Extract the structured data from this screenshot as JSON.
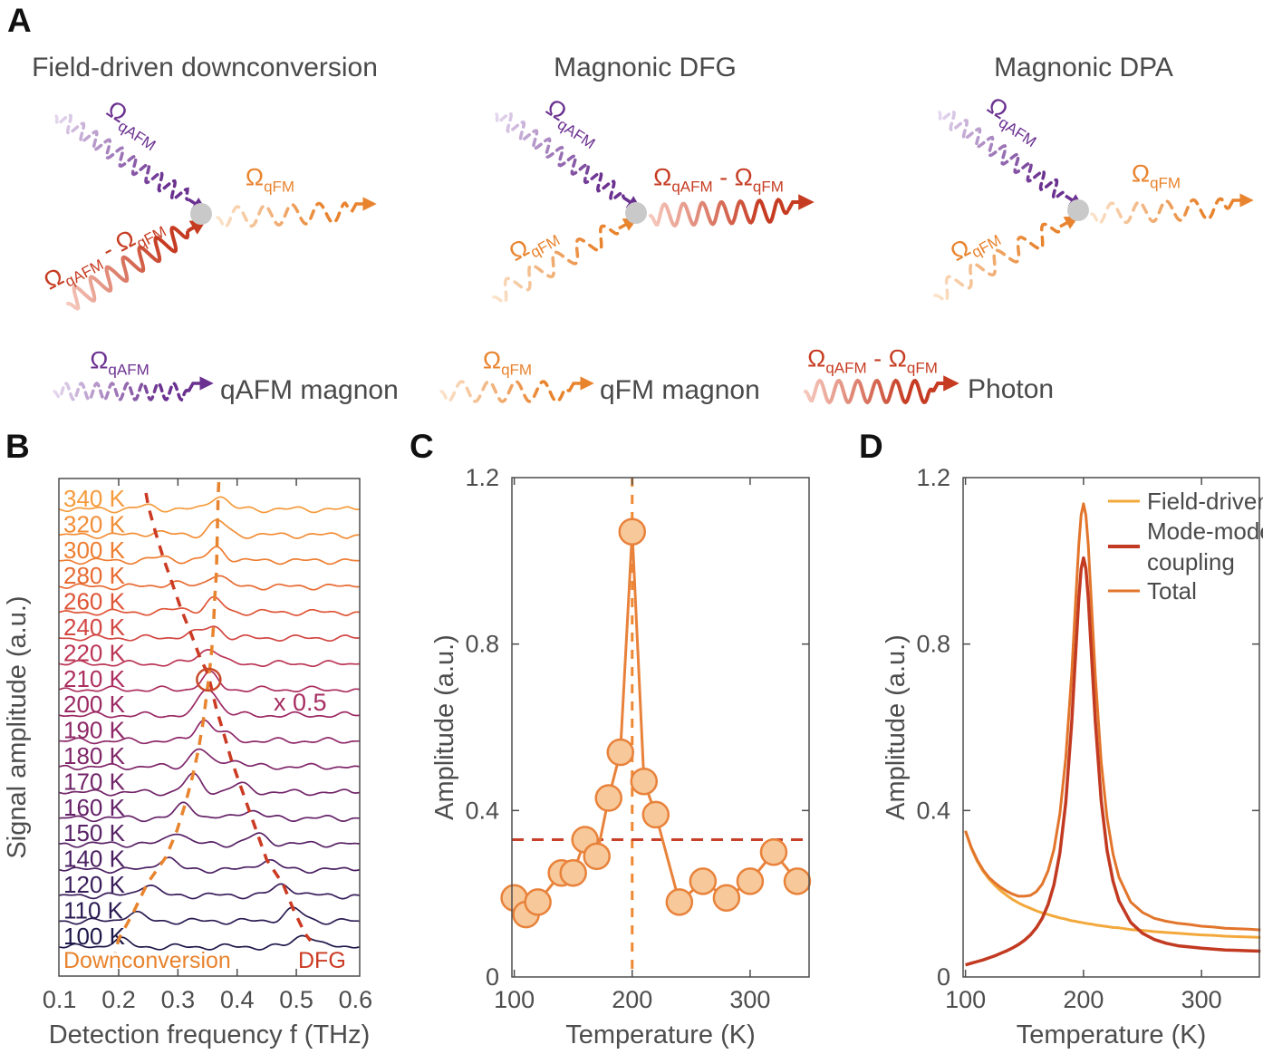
{
  "panel_labels": {
    "a": "A",
    "b": "B",
    "c": "C",
    "d": "D"
  },
  "colors": {
    "purple": "#6B3190",
    "purple_light": "#E6D9EF",
    "orange": "#E8832E",
    "orange_light": "#FBE3CB",
    "red": "#C63C22",
    "red_light": "#F6C9BE",
    "dot_gray": "#C9C9C9",
    "axis": "#4d4d4d",
    "text_gray": "#4a4a4a"
  },
  "panelA": {
    "diagrams": [
      {
        "title": "Field-driven downconversion",
        "in_top": {
          "style": "purple-dashed",
          "label": [
            {
              "t": "Ω"
            },
            {
              "t": "qAFM",
              "sub": true
            }
          ]
        },
        "in_bottom": {
          "style": "red-solid",
          "label": [
            {
              "t": "Ω"
            },
            {
              "t": "qAFM",
              "sub": true
            },
            {
              "t": " - "
            },
            {
              "t": "Ω"
            },
            {
              "t": "qFM",
              "sub": true
            }
          ]
        },
        "out": {
          "style": "orange-dashed",
          "label": [
            {
              "t": "Ω"
            },
            {
              "t": "qFM",
              "sub": true
            }
          ]
        }
      },
      {
        "title": "Magnonic DFG",
        "in_top": {
          "style": "purple-dashed",
          "label": [
            {
              "t": "Ω"
            },
            {
              "t": "qAFM",
              "sub": true
            }
          ]
        },
        "in_bottom": {
          "style": "orange-dashed",
          "label": [
            {
              "t": "Ω"
            },
            {
              "t": "qFM",
              "sub": true
            }
          ]
        },
        "out": {
          "style": "red-solid",
          "label": [
            {
              "t": "Ω"
            },
            {
              "t": "qAFM",
              "sub": true
            },
            {
              "t": " - "
            },
            {
              "t": "Ω"
            },
            {
              "t": "qFM",
              "sub": true
            }
          ]
        }
      },
      {
        "title": "Magnonic DPA",
        "in_top": {
          "style": "purple-dashed",
          "label": [
            {
              "t": "Ω"
            },
            {
              "t": "qAFM",
              "sub": true
            }
          ]
        },
        "in_bottom": {
          "style": "orange-dashed",
          "label": [
            {
              "t": "Ω"
            },
            {
              "t": "qFM",
              "sub": true
            }
          ]
        },
        "out": {
          "style": "orange-dashed",
          "label": [
            {
              "t": "Ω"
            },
            {
              "t": "qFM",
              "sub": true
            }
          ]
        }
      }
    ],
    "legend": [
      {
        "style": "purple-dashed",
        "label": [
          {
            "t": "Ω"
          },
          {
            "t": "qAFM",
            "sub": true
          }
        ],
        "text": "qAFM magnon"
      },
      {
        "style": "orange-dashed",
        "label": [
          {
            "t": "Ω"
          },
          {
            "t": "qFM",
            "sub": true
          }
        ],
        "text": "qFM magnon"
      },
      {
        "style": "red-solid",
        "label": [
          {
            "t": "Ω"
          },
          {
            "t": "qAFM",
            "sub": true
          },
          {
            "t": " - "
          },
          {
            "t": "Ω"
          },
          {
            "t": "qFM",
            "sub": true
          }
        ],
        "text": "Photon"
      }
    ]
  },
  "chart_data": [
    {
      "id": "B",
      "type": "line",
      "xlabel": "Detection frequency f (THz)",
      "ylabel": "Signal amplitude (a.u.)",
      "xlim": [
        0.099,
        0.607
      ],
      "xticks": [
        0.1,
        0.2,
        0.3,
        0.4,
        0.5,
        0.6
      ],
      "grid": false,
      "traces": [
        {
          "label": "340 K",
          "color": "#F59B3C",
          "dc_f": 0.368,
          "dc_amp": 0.55,
          "dfg_f": 0.25,
          "dfg_amp": 0.12
        },
        {
          "label": "320 K",
          "color": "#F28D36",
          "dc_f": 0.367,
          "dc_amp": 0.55,
          "dfg_f": 0.262,
          "dfg_amp": 0.12
        },
        {
          "label": "300 K",
          "color": "#EE7E32",
          "dc_f": 0.366,
          "dc_amp": 0.5,
          "dfg_f": 0.275,
          "dfg_amp": 0.14
        },
        {
          "label": "280 K",
          "color": "#E76A31",
          "dc_f": 0.365,
          "dc_amp": 0.5,
          "dfg_f": 0.29,
          "dfg_amp": 0.15
        },
        {
          "label": "260 K",
          "color": "#DE5537",
          "dc_f": 0.362,
          "dc_amp": 0.5,
          "dfg_f": 0.305,
          "dfg_amp": 0.15
        },
        {
          "label": "240 K",
          "color": "#D24742",
          "dc_f": 0.36,
          "dc_amp": 0.45,
          "dfg_f": 0.322,
          "dfg_amp": 0.18
        },
        {
          "label": "220 K",
          "color": "#BB3655",
          "dc_f": 0.357,
          "dc_amp": 0.5,
          "dfg_f": 0.338,
          "dfg_amp": 0.2
        },
        {
          "label": "210 K",
          "color": "#AC2F5F",
          "dc_f": 0.353,
          "dc_amp": 0.6,
          "dfg_f": 0.351,
          "dfg_amp": 0.0
        },
        {
          "label": "200 K",
          "color": "#9B2A64",
          "dc_f": 0.349,
          "dc_amp": 0.9,
          "dfg_f": 0.365,
          "dfg_amp": 0.25
        },
        {
          "label": "190 K",
          "color": "#8D2767",
          "dc_f": 0.343,
          "dc_amp": 0.8,
          "dfg_f": 0.378,
          "dfg_amp": 0.25
        },
        {
          "label": "180 K",
          "color": "#7F2569",
          "dc_f": 0.335,
          "dc_amp": 0.7,
          "dfg_f": 0.39,
          "dfg_amp": 0.28
        },
        {
          "label": "170 K",
          "color": "#722469",
          "dc_f": 0.325,
          "dc_amp": 0.65,
          "dfg_f": 0.405,
          "dfg_amp": 0.3
        },
        {
          "label": "160 K",
          "color": "#652268",
          "dc_f": 0.313,
          "dc_amp": 0.6,
          "dfg_f": 0.42,
          "dfg_amp": 0.32
        },
        {
          "label": "150 K",
          "color": "#572165",
          "dc_f": 0.298,
          "dc_amp": 0.5,
          "dfg_f": 0.435,
          "dfg_amp": 0.35
        },
        {
          "label": "140 K",
          "color": "#4A1F61",
          "dc_f": 0.28,
          "dc_amp": 0.5,
          "dfg_f": 0.45,
          "dfg_amp": 0.38
        },
        {
          "label": "120 K",
          "color": "#391D5B",
          "dc_f": 0.248,
          "dc_amp": 0.45,
          "dfg_f": 0.478,
          "dfg_amp": 0.42
        },
        {
          "label": "110 K",
          "color": "#2B1B52",
          "dc_f": 0.225,
          "dc_amp": 0.35,
          "dfg_f": 0.495,
          "dfg_amp": 0.45
        },
        {
          "label": "100 K",
          "color": "#1E184A",
          "dc_f": 0.2,
          "dc_amp": 0.3,
          "dfg_f": 0.515,
          "dfg_amp": 0.5
        }
      ],
      "guides": {
        "downconversion": {
          "label": "Downconversion",
          "color": "#E8832E"
        },
        "dfg": {
          "label": "DFG",
          "color": "#CB3A22"
        }
      },
      "annotations": {
        "scale_note": "x 0.5",
        "scale_note_color": "#A62C60",
        "circle_f": 0.352,
        "circle_row": "210 K"
      }
    },
    {
      "id": "C",
      "type": "scatter-line",
      "xlabel": "Temperature (K)",
      "ylabel": "Amplitude (a.u.)",
      "xlim": [
        98,
        350
      ],
      "ylim": [
        0,
        1.2
      ],
      "xticks": [
        100,
        200,
        300
      ],
      "yticks": [
        0,
        0.4,
        0.8,
        1.2
      ],
      "x": [
        100,
        110,
        120,
        140,
        150,
        160,
        170,
        180,
        190,
        200,
        210,
        220,
        240,
        260,
        280,
        300,
        320,
        340
      ],
      "y": [
        0.19,
        0.15,
        0.18,
        0.25,
        0.25,
        0.33,
        0.29,
        0.43,
        0.54,
        1.07,
        0.47,
        0.39,
        0.18,
        0.23,
        0.19,
        0.23,
        0.3,
        0.23
      ],
      "vline_x": 200,
      "hline_y": 0.33,
      "line_color": "#E8823B",
      "marker_fill": "#F7C899",
      "marker_stroke": "#E8823B",
      "vline_color": "#EE8833",
      "hline_color": "#C8402A"
    },
    {
      "id": "D",
      "type": "line",
      "xlabel": "Temperature (K)",
      "ylabel": "Amplitude (a.u.)",
      "xlim": [
        98,
        349
      ],
      "ylim": [
        0,
        1.2
      ],
      "xticks": [
        100,
        200,
        300
      ],
      "yticks": [
        0,
        0.4,
        0.8,
        1.2
      ],
      "legend_position": "top-right",
      "x": [
        100,
        105,
        110,
        115,
        120,
        125,
        130,
        135,
        140,
        145,
        150,
        155,
        160,
        165,
        170,
        175,
        180,
        185,
        190,
        193,
        196,
        198,
        200,
        202,
        204,
        207,
        210,
        215,
        220,
        225,
        230,
        240,
        250,
        260,
        270,
        280,
        290,
        300,
        310,
        320,
        330,
        340,
        350
      ],
      "series": [
        {
          "name": "Field-driven",
          "legend_lines": [
            "Field-driven"
          ],
          "color": "#F3A83B",
          "width": 3,
          "values": [
            0.35,
            0.309,
            0.278,
            0.254,
            0.235,
            0.22,
            0.207,
            0.196,
            0.186,
            0.178,
            0.171,
            0.165,
            0.159,
            0.154,
            0.15,
            0.146,
            0.142,
            0.139,
            0.135,
            0.134,
            0.132,
            0.131,
            0.13,
            0.129,
            0.128,
            0.127,
            0.125,
            0.123,
            0.121,
            0.119,
            0.118,
            0.114,
            0.112,
            0.109,
            0.107,
            0.105,
            0.103,
            0.101,
            0.1,
            0.098,
            0.097,
            0.096,
            0.095
          ]
        },
        {
          "name": "Total",
          "legend_lines": [
            "Total"
          ],
          "color": "#E2752B",
          "width": 3,
          "values": [
            0.351,
            0.311,
            0.281,
            0.257,
            0.239,
            0.226,
            0.215,
            0.206,
            0.199,
            0.194,
            0.194,
            0.196,
            0.205,
            0.223,
            0.255,
            0.307,
            0.392,
            0.526,
            0.73,
            0.887,
            1.039,
            1.111,
            1.137,
            1.11,
            1.04,
            0.883,
            0.724,
            0.517,
            0.382,
            0.295,
            0.24,
            0.18,
            0.155,
            0.141,
            0.134,
            0.129,
            0.126,
            0.122,
            0.12,
            0.117,
            0.116,
            0.115,
            0.113
          ]
        },
        {
          "name": "Mode-mode coupling",
          "legend_lines": [
            "Mode-mode",
            "coupling"
          ],
          "color": "#C23A21",
          "width": 3.5,
          "values": [
            0.029,
            0.033,
            0.037,
            0.041,
            0.046,
            0.051,
            0.057,
            0.063,
            0.07,
            0.078,
            0.088,
            0.101,
            0.118,
            0.141,
            0.174,
            0.222,
            0.298,
            0.419,
            0.612,
            0.762,
            0.91,
            0.981,
            1.007,
            0.982,
            0.912,
            0.764,
            0.615,
            0.424,
            0.304,
            0.23,
            0.183,
            0.131,
            0.105,
            0.09,
            0.081,
            0.075,
            0.072,
            0.069,
            0.067,
            0.065,
            0.064,
            0.063,
            0.062
          ]
        }
      ]
    }
  ]
}
